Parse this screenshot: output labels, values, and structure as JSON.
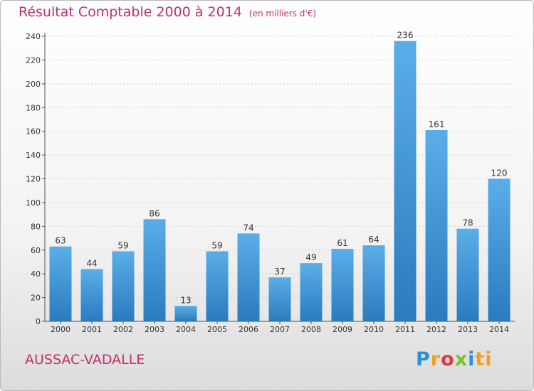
{
  "header": {
    "title": "Résultat Comptable 2000 à 2014",
    "unit": "(en milliers d'€)"
  },
  "footer": {
    "commune": "AUSSAC-VADALLE",
    "logo": [
      "P",
      "r",
      "o",
      "x",
      "i",
      "ti"
    ]
  },
  "colors": {
    "title": "#c0306a",
    "bar_top": "#5aaee8",
    "bar_bottom": "#2a7bbf"
  },
  "chart_data": {
    "type": "bar",
    "title": "Résultat Comptable 2000 à 2014",
    "categories": [
      "2000",
      "2001",
      "2002",
      "2003",
      "2004",
      "2005",
      "2006",
      "2007",
      "2008",
      "2009",
      "2010",
      "2011",
      "2012",
      "2013",
      "2014"
    ],
    "values": [
      63,
      44,
      59,
      86,
      13,
      59,
      74,
      37,
      49,
      61,
      64,
      236,
      161,
      78,
      120
    ],
    "yticks": [
      0,
      20,
      40,
      60,
      80,
      100,
      120,
      140,
      160,
      180,
      200,
      220,
      240
    ],
    "ylim": [
      0,
      240
    ],
    "grid": true,
    "legend": "none"
  }
}
